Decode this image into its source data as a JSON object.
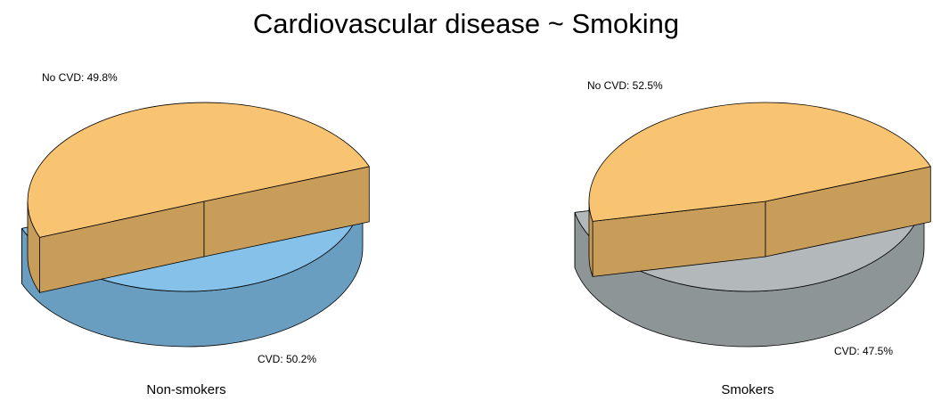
{
  "chart_data": {
    "type": "pie",
    "title": "Cardiovascular disease ~ Smoking",
    "pies": [
      {
        "name": "Non-smokers",
        "slices": [
          {
            "label": "No CVD",
            "value": 49.8,
            "display": "No CVD: 49.8%",
            "color": "#85c1e9",
            "side_color": "#6a9ec0",
            "exploded": false
          },
          {
            "label": "CVD",
            "value": 50.2,
            "display": "CVD: 50.2%",
            "color": "#f8c471",
            "side_color": "#c89d5a",
            "exploded": true
          }
        ]
      },
      {
        "name": "Smokers",
        "slices": [
          {
            "label": "No CVD",
            "value": 52.5,
            "display": "No CVD: 52.5%",
            "color": "#b3b9ba",
            "side_color": "#8e9596",
            "exploded": false
          },
          {
            "label": "CVD",
            "value": 47.5,
            "display": "CVD: 47.5%",
            "color": "#f8c471",
            "side_color": "#c89d5a",
            "exploded": true
          }
        ]
      }
    ]
  }
}
